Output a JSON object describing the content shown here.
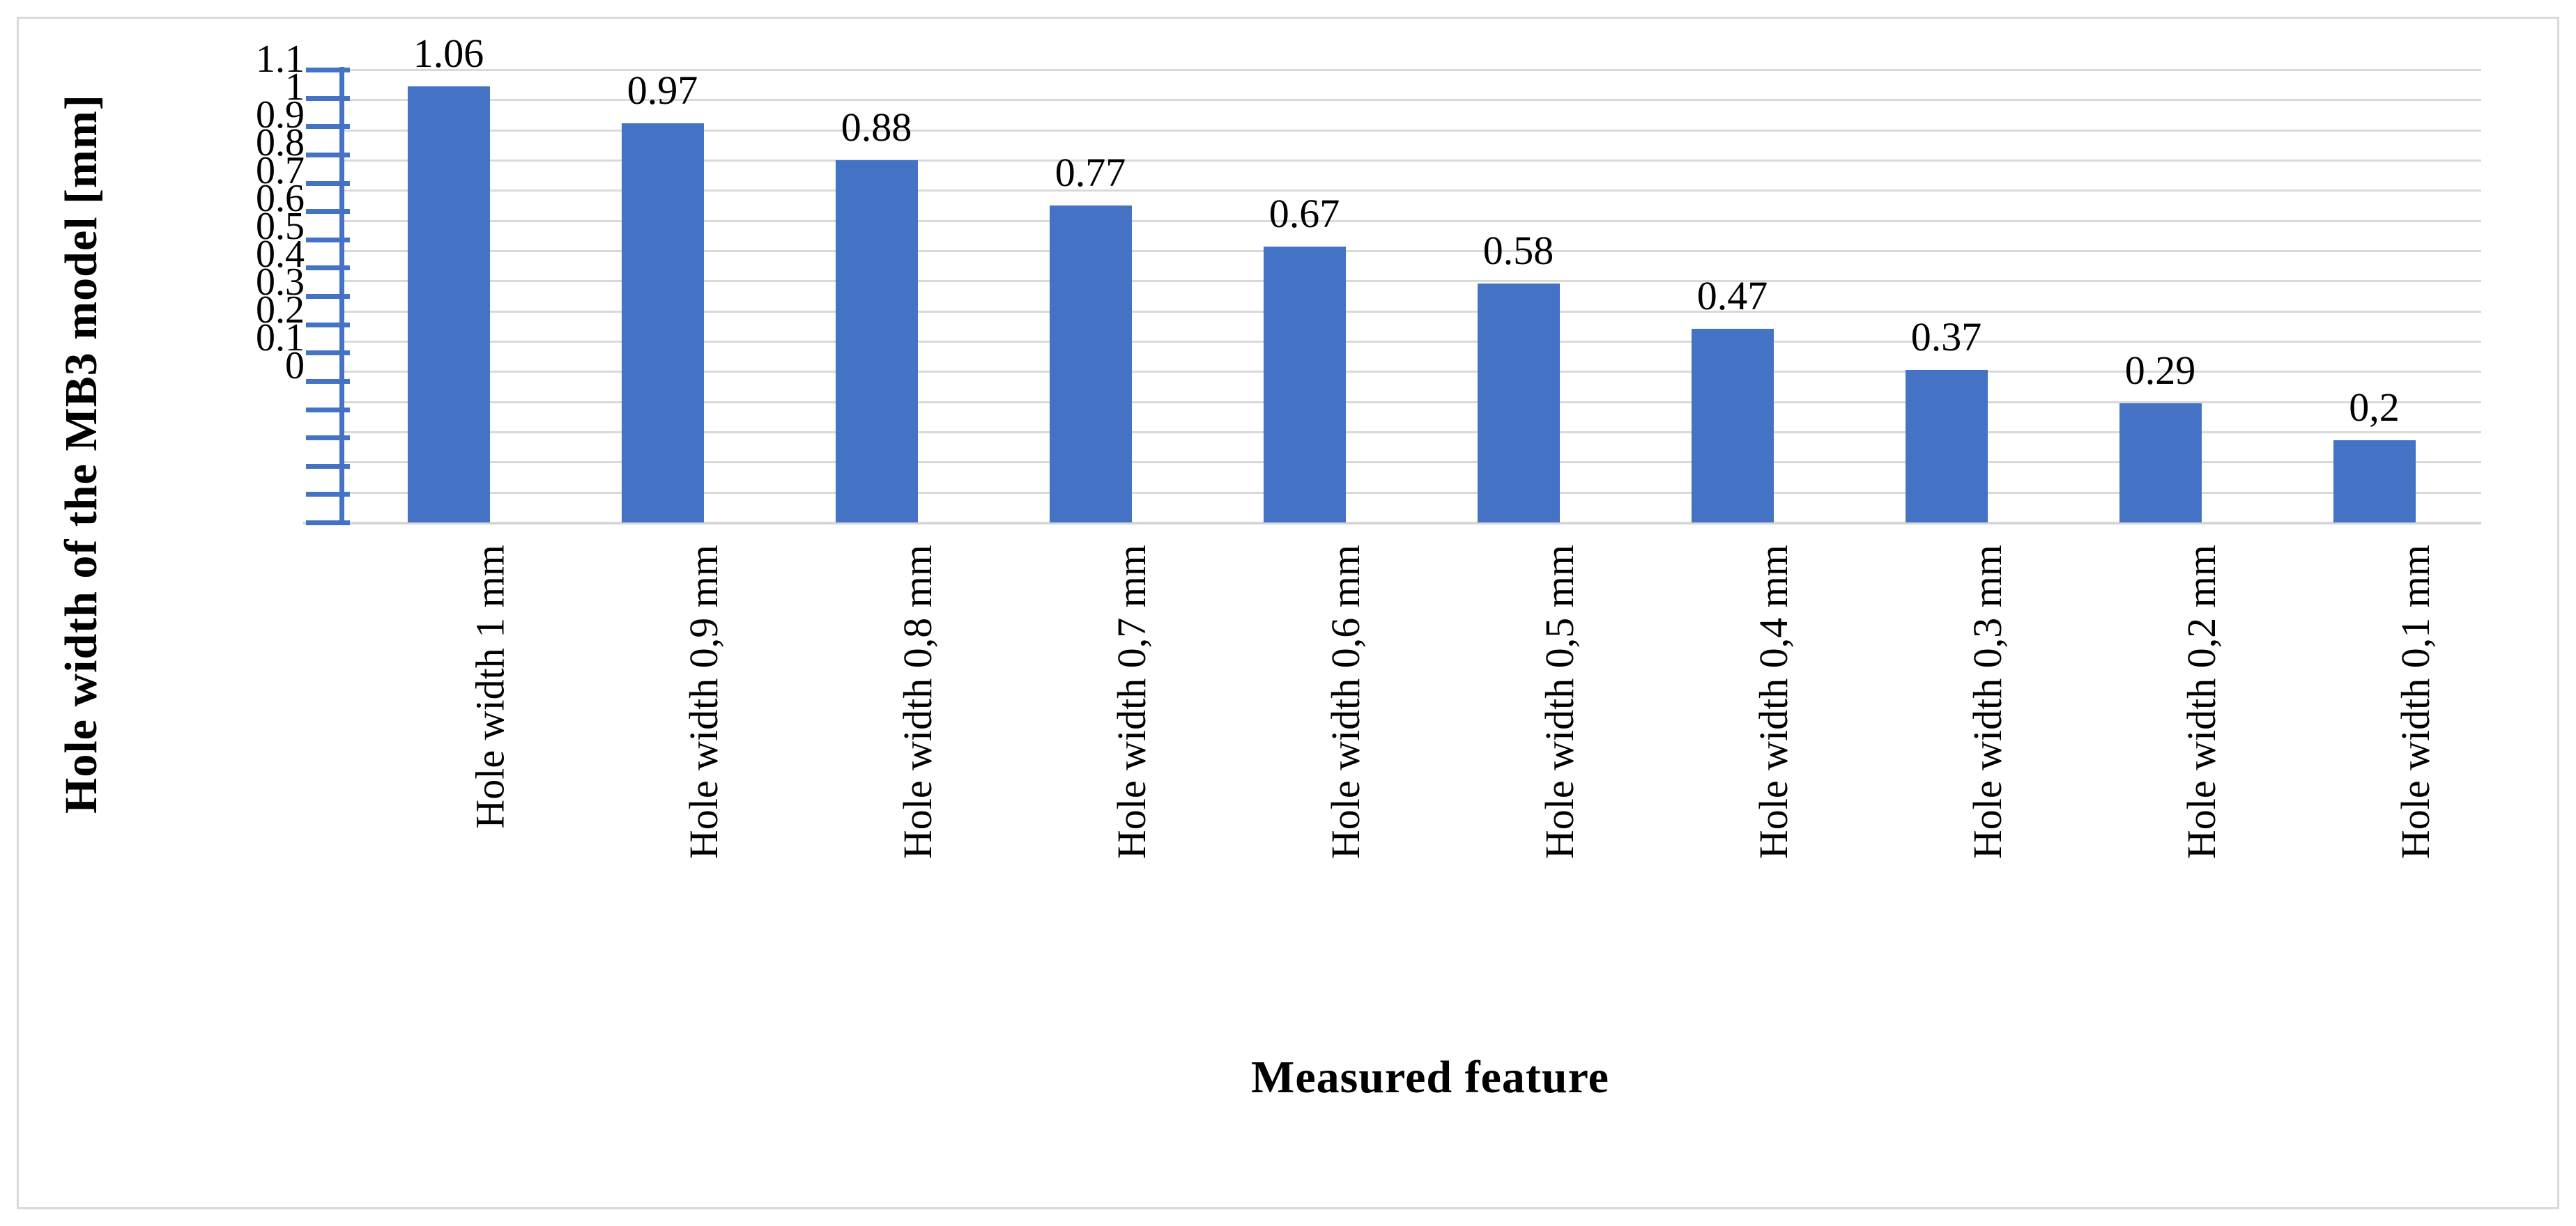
{
  "chart_data": {
    "type": "bar",
    "categories": [
      "Hole width 1 mm",
      "Hole width 0,9 mm",
      "Hole width 0,8 mm",
      "Hole width 0,7 mm",
      "Hole width 0,6 mm",
      "Hole width 0,5 mm",
      "Hole width 0,4 mm",
      "Hole width 0,3 mm",
      "Hole width 0,2 mm",
      "Hole width 0,1 mm"
    ],
    "values": [
      1.06,
      0.97,
      0.88,
      0.77,
      0.67,
      0.58,
      0.47,
      0.37,
      0.29,
      0.2
    ],
    "bar_labels": [
      "1.06",
      "0.97",
      "0.88",
      "0.77",
      "0.67",
      "0.58",
      "0.47",
      "0.37",
      "0.29",
      "0,2"
    ],
    "xlabel": "Measured feature",
    "ylabel": "Hole width of the MB3 model [mm]",
    "ylim": [
      0,
      1.1
    ],
    "y_tick_step": 0.1,
    "y_tick_labels": [
      "1.1",
      "1",
      "0.9",
      "0.8",
      "0.7",
      "0.6",
      "0.5",
      "0.4",
      "0.3",
      "0.2",
      "0.1",
      "0"
    ],
    "grid": "horizontal-only",
    "legend": "none",
    "bar_color": "#4472C4",
    "axis_color": "#4472C4",
    "gridline_color": "#D9D9D9",
    "label_color": "#000000",
    "frame_border_color": "#D9D9D9"
  }
}
